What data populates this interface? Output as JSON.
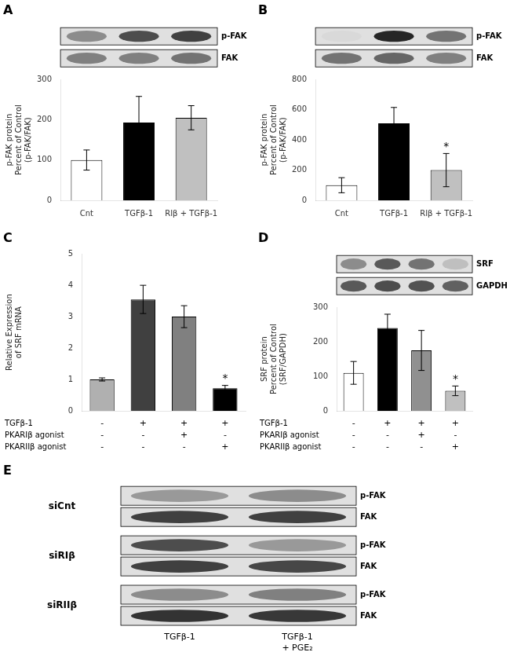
{
  "chart_data": [
    {
      "type": "bar",
      "title": "A",
      "categories": [
        "Cnt",
        "TGFβ-1",
        "RIβ + TGFβ-1"
      ],
      "values": [
        100,
        193,
        205
      ],
      "errors": [
        25,
        65,
        30
      ],
      "colors": [
        "white",
        "black",
        "#c0c0c0"
      ],
      "significance": [
        null,
        null,
        null
      ],
      "ylabel": "p-FAK protein\nPercent of Control\n(p-FAK/FAK)",
      "ylim": [
        0,
        300
      ],
      "yticks": [
        0,
        100,
        200,
        300
      ],
      "grid": false,
      "blots": [
        {
          "name": "p-FAK",
          "intensities": [
            0.55,
            0.3,
            0.25
          ]
        },
        {
          "name": "FAK",
          "intensities": [
            0.5,
            0.5,
            0.45
          ]
        }
      ]
    },
    {
      "type": "bar",
      "title": "B",
      "categories": [
        "Cnt",
        "TGFβ-1",
        "RIβ + TGFβ-1"
      ],
      "values": [
        100,
        510,
        200
      ],
      "errors": [
        50,
        105,
        110
      ],
      "colors": [
        "white",
        "black",
        "#c0c0c0"
      ],
      "significance": [
        null,
        null,
        "*"
      ],
      "ylabel": "p-FAK protein\nPercent of Control\n(p-FAK/FAK)",
      "ylim": [
        0,
        800
      ],
      "yticks": [
        0,
        200,
        400,
        600,
        800
      ],
      "grid": false,
      "blots": [
        {
          "name": "p-FAK",
          "intensities": [
            0.85,
            0.15,
            0.45
          ]
        },
        {
          "name": "FAK",
          "intensities": [
            0.45,
            0.4,
            0.5
          ]
        }
      ]
    },
    {
      "type": "bar",
      "title": "C",
      "categories": [
        null,
        null,
        null,
        null
      ],
      "values": [
        1.0,
        3.55,
        3.0,
        0.72
      ],
      "errors": [
        0.05,
        0.45,
        0.35,
        0.09
      ],
      "colors": [
        "#b0b0b0",
        "#404040",
        "#808080",
        "black"
      ],
      "significance": [
        null,
        null,
        null,
        "*"
      ],
      "ylabel": "Relative Expression\nof SRF mRNA",
      "ylim": [
        0,
        5
      ],
      "yticks": [
        0,
        1,
        2,
        3,
        4,
        5
      ],
      "grid": false,
      "tick_labels": "y",
      "table": {
        "row_labels": [
          "TGFβ-1",
          "PKARIβ agonist",
          "PKARIIβ agonist"
        ],
        "row_signs": [
          [
            "-",
            "+",
            "+",
            "+"
          ],
          [
            "-",
            "-",
            "+",
            "-"
          ],
          [
            "-",
            "-",
            "-",
            "+"
          ]
        ]
      }
    },
    {
      "type": "bar",
      "title": "D",
      "categories": [
        null,
        null,
        null,
        null
      ],
      "values": [
        110,
        240,
        175,
        58
      ],
      "errors": [
        33,
        40,
        58,
        14
      ],
      "colors": [
        "white",
        "black",
        "#909090",
        "#c0c0c0"
      ],
      "significance": [
        null,
        null,
        null,
        "*"
      ],
      "ylabel": "SRF protein\nPercent of Control\n(SRF/GAPDH)",
      "ylim": [
        0,
        300
      ],
      "yticks": [
        0,
        100,
        200,
        300
      ],
      "grid": false,
      "tick_labels": "y",
      "blots": [
        {
          "name": "SRF",
          "intensities": [
            0.55,
            0.35,
            0.45,
            0.75
          ]
        },
        {
          "name": "GAPDH",
          "intensities": [
            0.35,
            0.3,
            0.32,
            0.38
          ]
        }
      ],
      "table": {
        "row_labels": [
          "TGFβ-1",
          "PKARIβ agonist",
          "PKARIIβ agonist"
        ],
        "row_signs": [
          [
            "-",
            "+",
            "+",
            "+"
          ],
          [
            "-",
            "-",
            "+",
            "-"
          ],
          [
            "-",
            "-",
            "-",
            "+"
          ]
        ]
      }
    },
    {
      "type": "blot",
      "title": "E",
      "categories": [
        "TGFβ-1",
        "TGFβ-1\n+ PGE₂"
      ],
      "groups": [
        {
          "name": "siCnt",
          "blots": [
            {
              "name": "p-FAK",
              "intensities": [
                0.6,
                0.55
              ]
            },
            {
              "name": "FAK",
              "intensities": [
                0.25,
                0.25
              ]
            }
          ]
        },
        {
          "name": "siRIβ",
          "blots": [
            {
              "name": "p-FAK",
              "intensities": [
                0.3,
                0.6
              ]
            },
            {
              "name": "FAK",
              "intensities": [
                0.25,
                0.28
              ]
            }
          ]
        },
        {
          "name": "siRIIβ",
          "blots": [
            {
              "name": "p-FAK",
              "intensities": [
                0.55,
                0.5
              ]
            },
            {
              "name": "FAK",
              "intensities": [
                0.2,
                0.22
              ]
            }
          ]
        }
      ]
    }
  ]
}
